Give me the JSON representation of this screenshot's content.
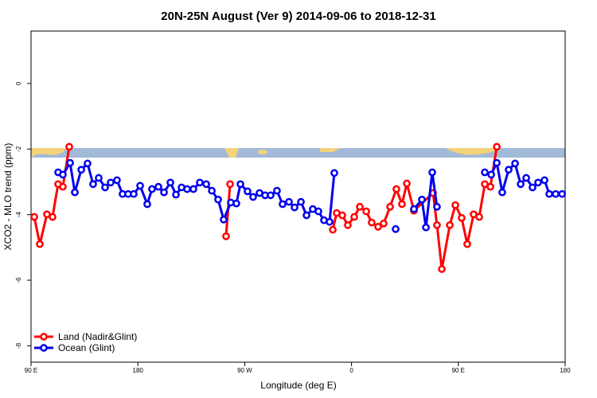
{
  "chart_data": {
    "type": "line",
    "title": "20N-25N August (Ver 9)   2014-09-06 to 2018-12-31",
    "xlabel": "Longitude (deg E)",
    "ylabel": "XCO2 - MLO trend (ppm)",
    "xlim": [
      90,
      540
    ],
    "ylim": [
      -8.5,
      1.6
    ],
    "xticks": [
      {
        "value": 90,
        "label": "90 E"
      },
      180,
      {
        "value": 270,
        "label": "90 W"
      },
      {
        "value": 360,
        "label": "0"
      },
      {
        "value": 450,
        "label": "90 E"
      },
      {
        "value": 540,
        "label": "180"
      }
    ],
    "yticks": [
      0,
      -2,
      -4,
      -6,
      -8
    ],
    "legend": "bottom-left",
    "series": [
      {
        "name": "Land (Nadir&Glint)",
        "color": "#ff0000",
        "x": [
          92.7,
          97.4,
          103.4,
          108.1,
          112.8,
          116.8,
          122.2,
          null,
          254.3,
          257.7,
          null,
          344.2,
          347.5,
          352.2,
          356.9,
          362.3,
          367,
          372.4,
          377,
          382.4,
          387.1,
          392.5,
          397.8,
          402.5,
          406.6,
          412.6,
          428.7,
          432,
          436.1,
          442.8,
          447.5,
          452.8,
          457.5,
          462.9,
          467.6,
          472.3,
          477,
          482.4
        ],
        "values": [
          -4.07,
          -4.9,
          -3.99,
          -4.07,
          -3.07,
          -3.15,
          -1.93,
          null,
          -4.66,
          -3.07,
          null,
          -4.46,
          -3.95,
          -4.02,
          -4.32,
          -4.07,
          -3.76,
          -3.9,
          -4.24,
          -4.37,
          -4.27,
          -3.76,
          -3.22,
          -3.68,
          -3.05,
          -3.88,
          -3.34,
          -4.32,
          -5.66,
          -4.32,
          -3.71,
          -4.1,
          -4.9,
          -3.99,
          -4.07,
          -3.07,
          -3.15,
          -1.93
        ]
      },
      {
        "name": "Ocean (Glint)",
        "color": "#0000ee",
        "x": [
          112.8,
          116.8,
          122.9,
          126.9,
          132.3,
          137.6,
          142.3,
          147,
          152.4,
          157.1,
          162.4,
          167.1,
          171.8,
          176.5,
          181.9,
          187.9,
          191.9,
          197.3,
          202,
          207.4,
          212.1,
          216.8,
          221.5,
          226.8,
          232.2,
          237.6,
          242.3,
          247.6,
          252.3,
          258.3,
          263,
          266.4,
          272.4,
          277.1,
          282.5,
          287.2,
          291.9,
          297.2,
          301.9,
          307.3,
          312,
          317.4,
          322.1,
          327.4,
          332.1,
          336.8,
          341.5,
          345.5,
          null,
          397.2,
          null,
          412.6,
          419.3,
          422.7,
          428,
          432,
          null,
          472.3,
          477.7,
          482.4,
          487,
          492.4,
          497.8,
          502.5,
          507.2,
          512.5,
          517.2,
          522.6,
          526.6,
          532,
          537.4
        ],
        "values": [
          -2.71,
          -2.78,
          -2.42,
          -3.32,
          -2.63,
          -2.44,
          -3.07,
          -2.88,
          -3.17,
          -3.02,
          -2.95,
          -3.37,
          -3.37,
          -3.37,
          -3.12,
          -3.68,
          -3.22,
          -3.15,
          -3.32,
          -3.02,
          -3.39,
          -3.17,
          -3.22,
          -3.22,
          -3.02,
          -3.07,
          -3.27,
          -3.54,
          -4.15,
          -3.63,
          -3.66,
          -3.07,
          -3.29,
          -3.46,
          -3.34,
          -3.41,
          -3.41,
          -3.27,
          -3.68,
          -3.61,
          -3.78,
          -3.61,
          -4.02,
          -3.83,
          -3.9,
          -4.17,
          -4.22,
          -2.73,
          null,
          -4.44,
          null,
          -3.83,
          -3.54,
          -4.39,
          -2.71,
          -3.76,
          null,
          -2.71,
          -2.78,
          -2.42,
          -3.32,
          -2.63,
          -2.44,
          -3.07,
          -2.88,
          -3.17,
          -3.02,
          -2.95,
          -3.37,
          -3.37,
          -3.37
        ]
      }
    ]
  }
}
